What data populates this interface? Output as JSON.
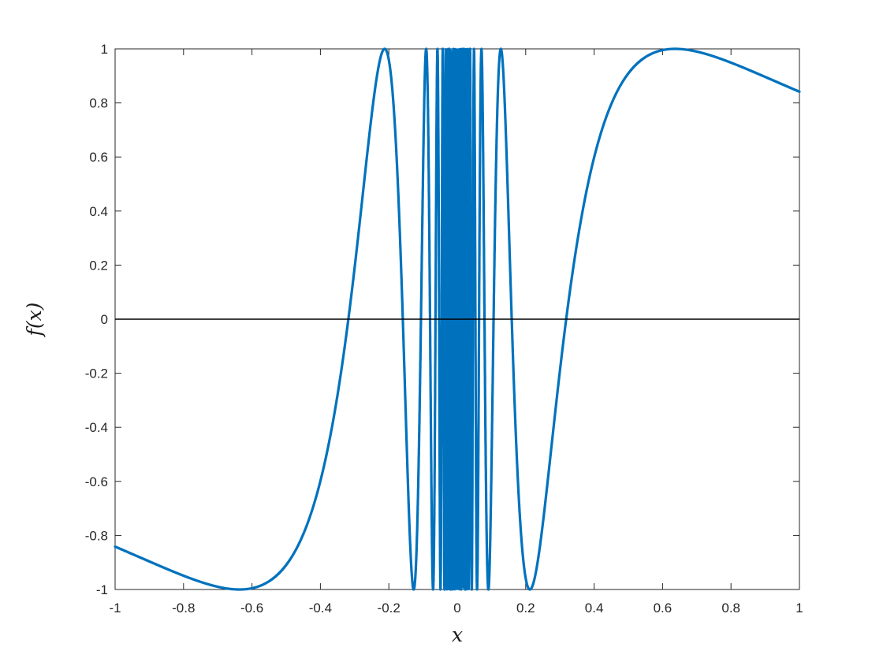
{
  "figure": {
    "background": "#ffffff"
  },
  "chart_data": {
    "type": "line",
    "title": "",
    "xlabel": "x",
    "ylabel": "f(x)",
    "function": "sin(1/x)",
    "x_range": [
      -1,
      1
    ],
    "y_range": [
      -1,
      1
    ],
    "samples": 14001,
    "x_ticks": [
      -1,
      -0.8,
      -0.6,
      -0.4,
      -0.2,
      0,
      0.2,
      0.4,
      0.6,
      0.8,
      1
    ],
    "x_tick_labels": [
      "-1",
      "-0.8",
      "-0.6",
      "-0.4",
      "-0.2",
      "0",
      "0.2",
      "0.4",
      "0.6",
      "0.8",
      "1"
    ],
    "y_ticks": [
      -1,
      -0.8,
      -0.6,
      -0.4,
      -0.2,
      0,
      0.2,
      0.4,
      0.6,
      0.8,
      1
    ],
    "y_tick_labels": [
      "-1",
      "-0.8",
      "-0.6",
      "-0.4",
      "-0.2",
      "0",
      "0.2",
      "0.4",
      "0.6",
      "0.8",
      "1"
    ],
    "grid": false,
    "legend": false,
    "box": true,
    "line_color": "#0072BD",
    "line_width": 3.2,
    "axis_color": "#262626",
    "tick_label_color": "#262626",
    "tick_length": 8,
    "zero_line": {
      "y": 0,
      "color": "#000000",
      "width": 1.6
    },
    "notable_features": {
      "maxima_touch_y1_at_x": [
        -0.2122,
        -0.0909,
        0.1273,
        0.6366
      ],
      "minima_touch_yneg1_at_x": [
        -0.6366,
        -0.1273,
        0.0909,
        0.2122
      ],
      "dense_oscillation_band_x": [
        -0.06,
        0.05
      ],
      "endpoint_values": {
        "f_at_minus1": -0.8415,
        "f_at_1": 0.8415
      }
    }
  }
}
